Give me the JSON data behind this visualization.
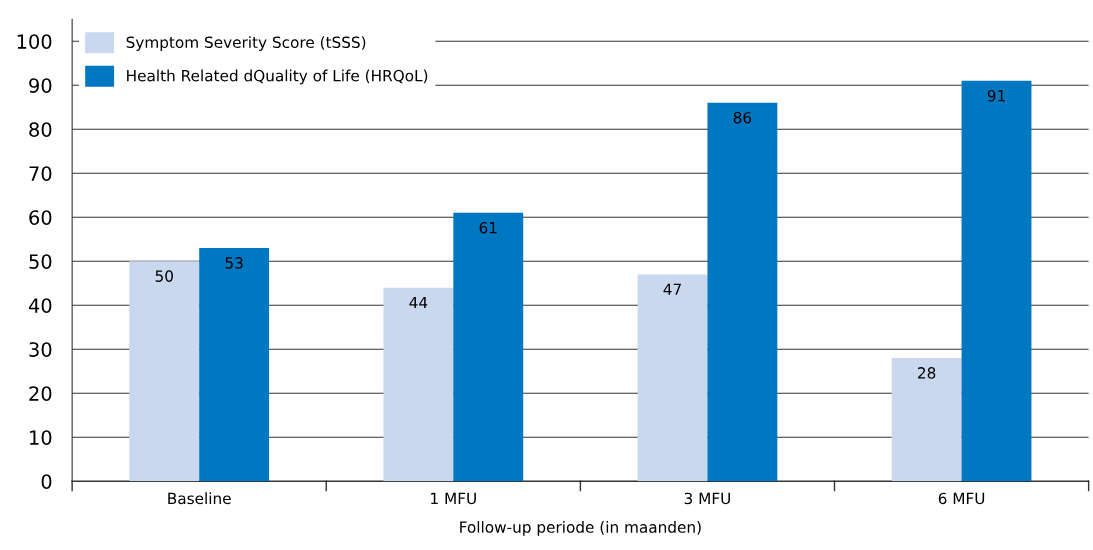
{
  "chart_data": {
    "type": "bar",
    "xlabel": "Follow-up periode (in maanden)",
    "categories": [
      "Baseline",
      "1 MFU",
      "3 MFU",
      "6 MFU"
    ],
    "series": [
      {
        "name": "Symptom Severity Score (tSSS)",
        "color": "#c9d8ef",
        "values": [
          50,
          44,
          47,
          28
        ]
      },
      {
        "name": "Health Related dQuality of Life (HRQoL)",
        "color": "#0077c1",
        "values": [
          53,
          61,
          86,
          91
        ]
      }
    ],
    "ylim": [
      0,
      105
    ],
    "yticks": [
      0,
      10,
      20,
      30,
      40,
      50,
      60,
      70,
      80,
      90,
      100
    ],
    "grid": "y",
    "legend": "top left",
    "data_labels": true
  }
}
